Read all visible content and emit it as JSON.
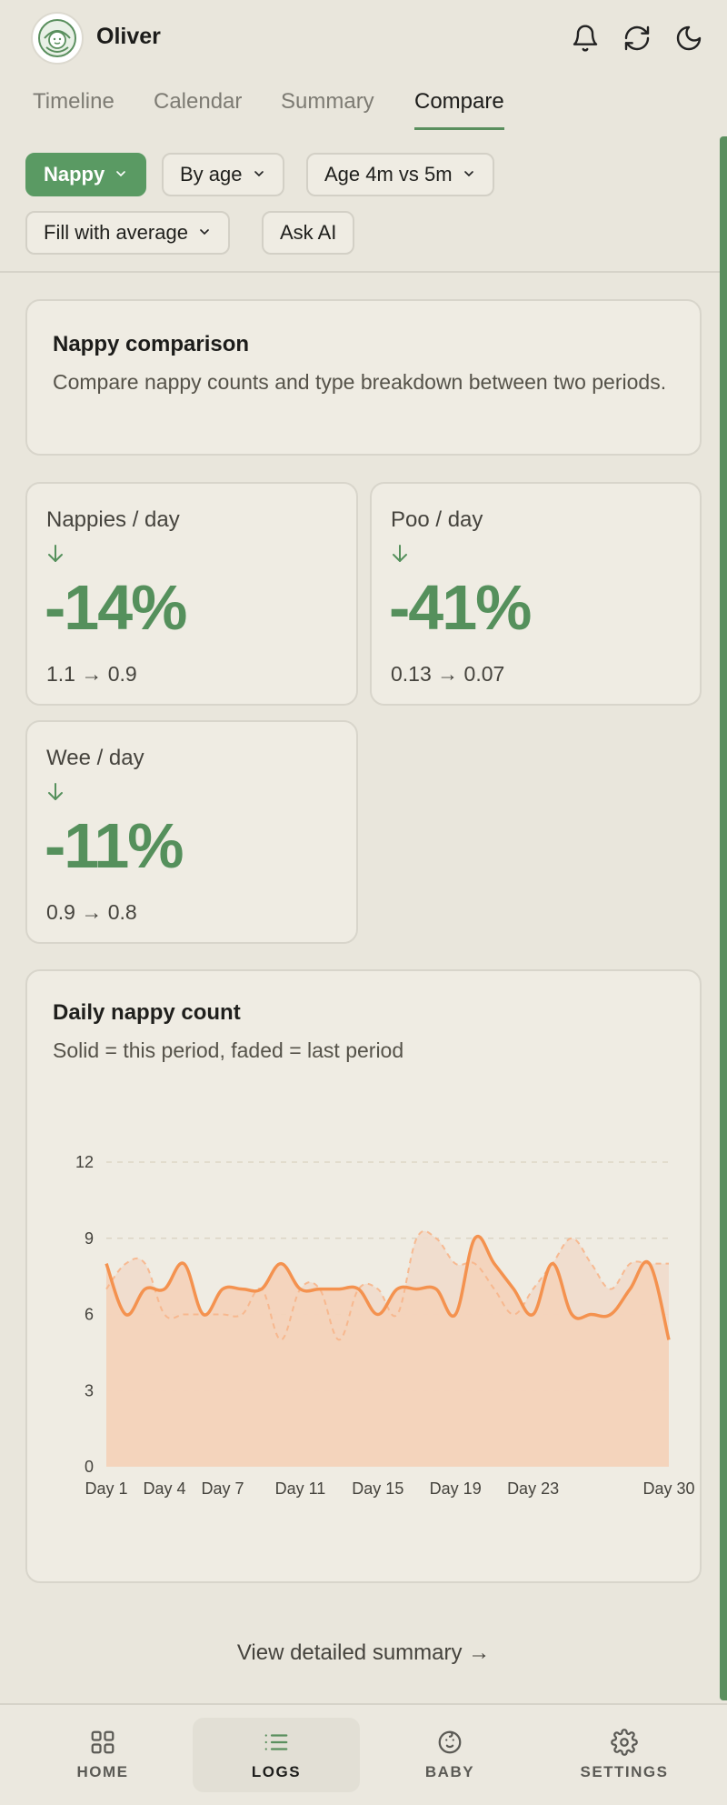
{
  "header": {
    "baby_name": "Oliver"
  },
  "tabs": [
    {
      "label": "Timeline",
      "active": false
    },
    {
      "label": "Calendar",
      "active": false
    },
    {
      "label": "Summary",
      "active": false
    },
    {
      "label": "Compare",
      "active": true
    }
  ],
  "filters": {
    "metric": "Nappy",
    "mode": "By age",
    "periods": "Age 4m vs 5m",
    "fill": "Fill with average",
    "ask_ai": "Ask AI"
  },
  "intro": {
    "title": "Nappy comparison",
    "description": "Compare nappy counts and type breakdown between two periods."
  },
  "stats": [
    {
      "label": "Nappies / day",
      "value": "-14%",
      "range": "1.1 → 0.9"
    },
    {
      "label": "Poo / day",
      "value": "-41%",
      "range": "0.13 → 0.07"
    },
    {
      "label": "Wee / day",
      "value": "-11%",
      "range": "0.9 → 0.8"
    }
  ],
  "chart_card": {
    "title": "Daily nappy count",
    "subtitle": "Solid = this period, faded = last period"
  },
  "chart_data": {
    "type": "area",
    "ylim": [
      0,
      12
    ],
    "yticks": [
      0,
      3,
      6,
      9,
      12
    ],
    "x_tick_labels": [
      "Day 1",
      "Day 4",
      "Day 7",
      "Day 11",
      "Day 15",
      "Day 19",
      "Day 23",
      "Day 30"
    ],
    "x_tick_days": [
      1,
      4,
      7,
      11,
      15,
      19,
      23,
      30
    ],
    "x": [
      1,
      2,
      3,
      4,
      5,
      6,
      7,
      8,
      9,
      10,
      11,
      12,
      13,
      14,
      15,
      16,
      17,
      18,
      19,
      20,
      21,
      22,
      23,
      24,
      25,
      26,
      27,
      28,
      29,
      30
    ],
    "series": [
      {
        "values": [
          8,
          6,
          7,
          7,
          8,
          6,
          7,
          7,
          7,
          8,
          7,
          7,
          7,
          7,
          6,
          7,
          7,
          7,
          6,
          9,
          8,
          7,
          6,
          8,
          6,
          6,
          6,
          7,
          8,
          5
        ],
        "color": "#f4924f"
      },
      {
        "values": [
          7,
          8,
          8,
          6,
          6,
          6,
          6,
          6,
          7,
          5,
          7,
          7,
          5,
          7,
          7,
          6,
          9,
          9,
          8,
          8,
          7,
          6,
          7,
          8,
          9,
          8,
          7,
          8,
          8,
          8
        ],
        "color": "#f7b58a"
      }
    ],
    "grid": true,
    "colors": {
      "this_fill": "#f3d3bb",
      "last_fill": "#f0dccb",
      "grid": "#d9d1c0"
    }
  },
  "summary_link": "View detailed summary →",
  "nav": [
    {
      "label": "HOME",
      "active": false
    },
    {
      "label": "LOGS",
      "active": true
    },
    {
      "label": "BABY",
      "active": false
    },
    {
      "label": "SETTINGS",
      "active": false
    }
  ],
  "colors": {
    "accent": "#5a9a63",
    "background": "#e9e6dc",
    "card": "#efece3",
    "chart_line": "#f4924f"
  }
}
